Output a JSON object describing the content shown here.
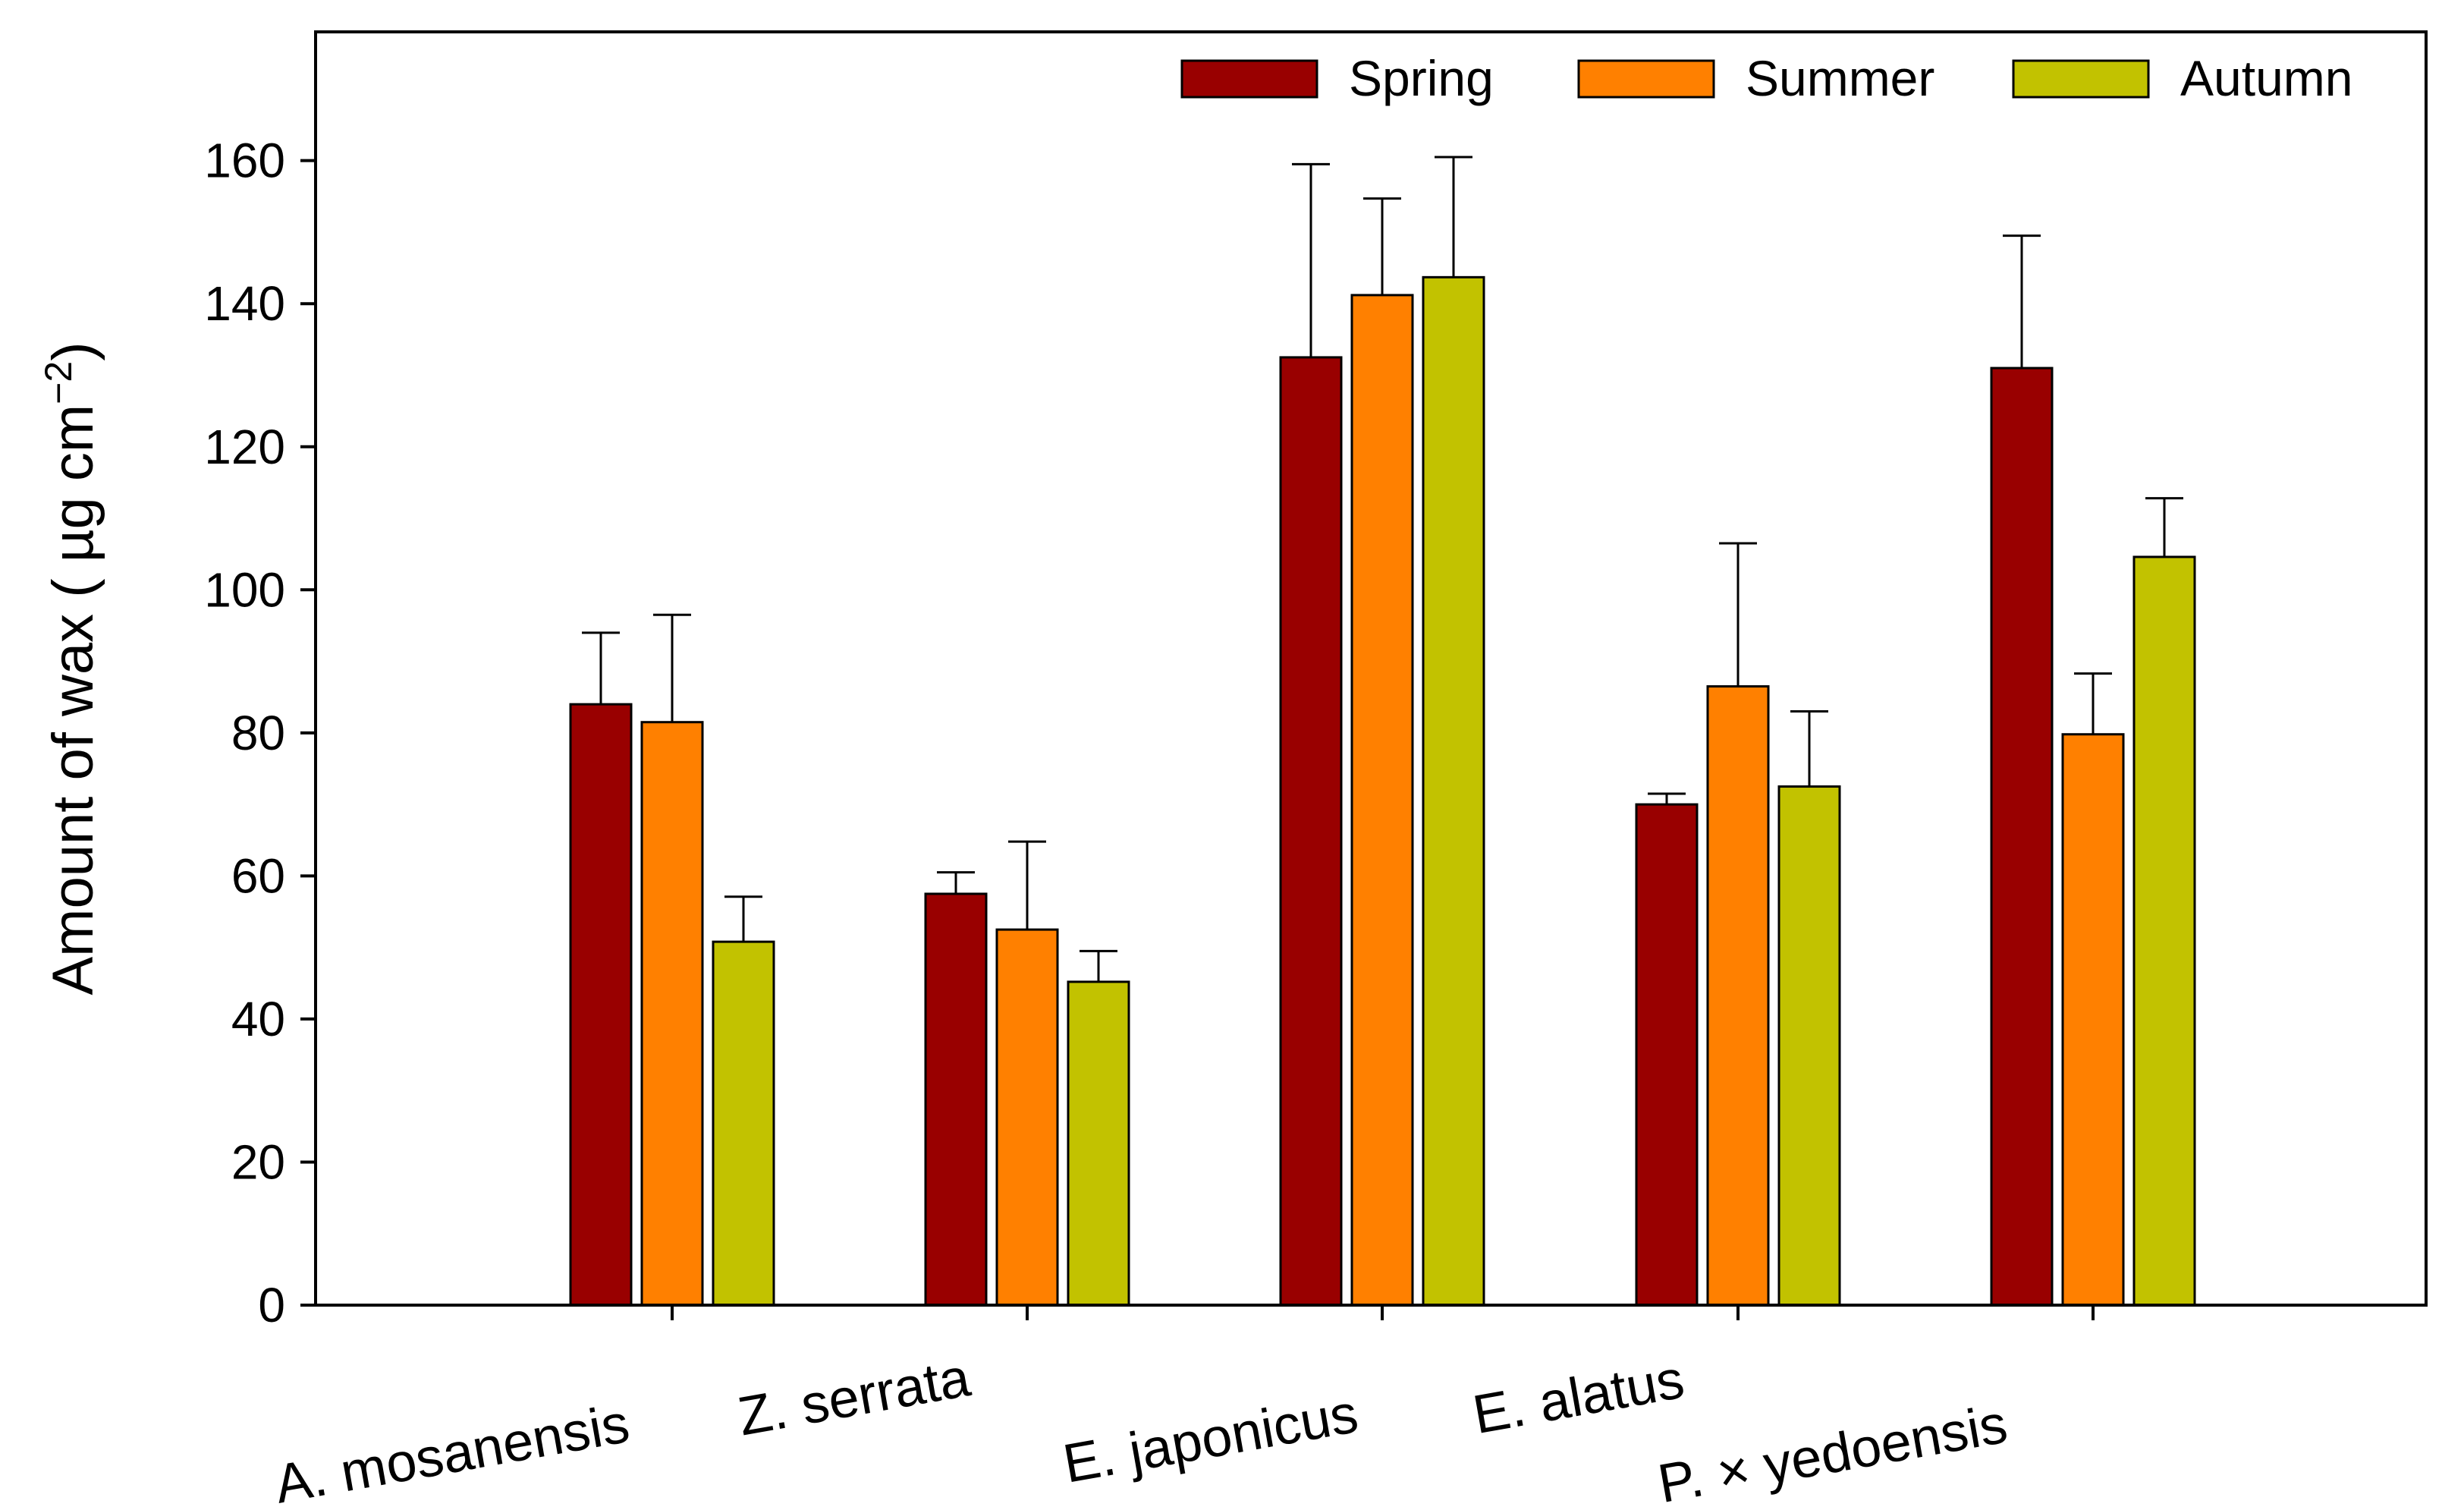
{
  "chart_data": {
    "type": "bar",
    "title": "",
    "xlabel": "",
    "ylabel": "Amount of wax ( µg cm",
    "ylabel_superscript": "−2",
    "ylabel_close": ")",
    "ylim": [
      0,
      178
    ],
    "yticks": [
      0,
      20,
      40,
      60,
      80,
      100,
      120,
      140,
      160
    ],
    "yticks_labels": [
      "0",
      "20",
      "40",
      "60",
      "80",
      "100",
      "120",
      "140",
      "160"
    ],
    "categories": [
      "A. mosanensis",
      "Z. serrata",
      "E.  japonicus",
      "E. alatus",
      "P. ×  yedoensis"
    ],
    "series": [
      {
        "name": "Spring",
        "color": "#990000",
        "values": [
          84,
          57.5,
          132.5,
          70,
          131
        ],
        "errors": [
          10,
          3,
          27,
          1.5,
          18.5
        ]
      },
      {
        "name": "Summer",
        "color": "#ff8000",
        "values": [
          81.5,
          52.5,
          141.2,
          86.5,
          79.8
        ],
        "errors": [
          15,
          12.3,
          13.5,
          20,
          8.5
        ]
      },
      {
        "name": "Autumn",
        "color": "#c2c200",
        "values": [
          50.8,
          45.2,
          143.7,
          72.5,
          104.6
        ],
        "errors": [
          6.3,
          4.3,
          16.8,
          10.5,
          8.2
        ]
      }
    ],
    "legend_position": "top-right",
    "grid": false
  }
}
